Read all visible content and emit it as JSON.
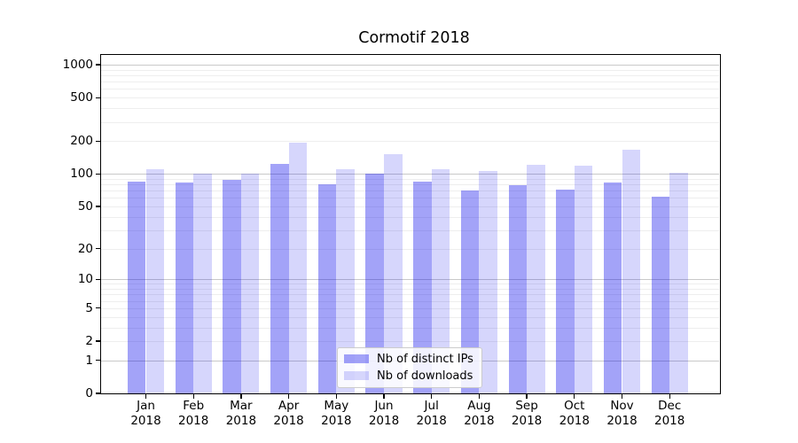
{
  "chart_data": {
    "type": "bar",
    "title": "Cormotif 2018",
    "categories": [
      "Jan 2018",
      "Feb 2018",
      "Mar 2018",
      "Apr 2018",
      "May 2018",
      "Jun 2018",
      "Jul 2018",
      "Aug 2018",
      "Sep 2018",
      "Oct 2018",
      "Nov 2018",
      "Dec 2018"
    ],
    "series": [
      {
        "name": "Nb of distinct IPs",
        "color": "rgba(0,0,235,0.36)",
        "values": [
          85,
          83,
          88,
          124,
          80,
          101,
          84,
          70,
          78,
          71,
          83,
          61
        ]
      },
      {
        "name": "Nb of downloads",
        "color": "rgba(0,0,235,0.16)",
        "values": [
          110,
          100,
          100,
          193,
          110,
          153,
          110,
          107,
          121,
          120,
          168,
          103
        ]
      }
    ],
    "y_axis": {
      "scale": "log1p",
      "ticks": [
        0,
        1,
        2,
        5,
        10,
        20,
        50,
        100,
        200,
        500,
        1000
      ],
      "ylim": [
        0,
        1240
      ],
      "major_grid_at": [
        1,
        10,
        100,
        1000
      ],
      "minor_grid_decades": [
        1,
        10,
        100
      ]
    },
    "legend_position": "lower center inside plot",
    "grid": {
      "major": true,
      "minor": true
    }
  },
  "legend": {
    "items": [
      {
        "label": "Nb of distinct IPs"
      },
      {
        "label": "Nb of downloads"
      }
    ]
  },
  "colors": {
    "bar_distinct_ips": "rgba(0,0,235,0.36)",
    "bar_downloads": "rgba(0,0,235,0.16)",
    "grid_major": "#c9c9c9",
    "grid_minor": "#eeeeee",
    "axis": "#000000",
    "legend_border": "#cccccc"
  }
}
